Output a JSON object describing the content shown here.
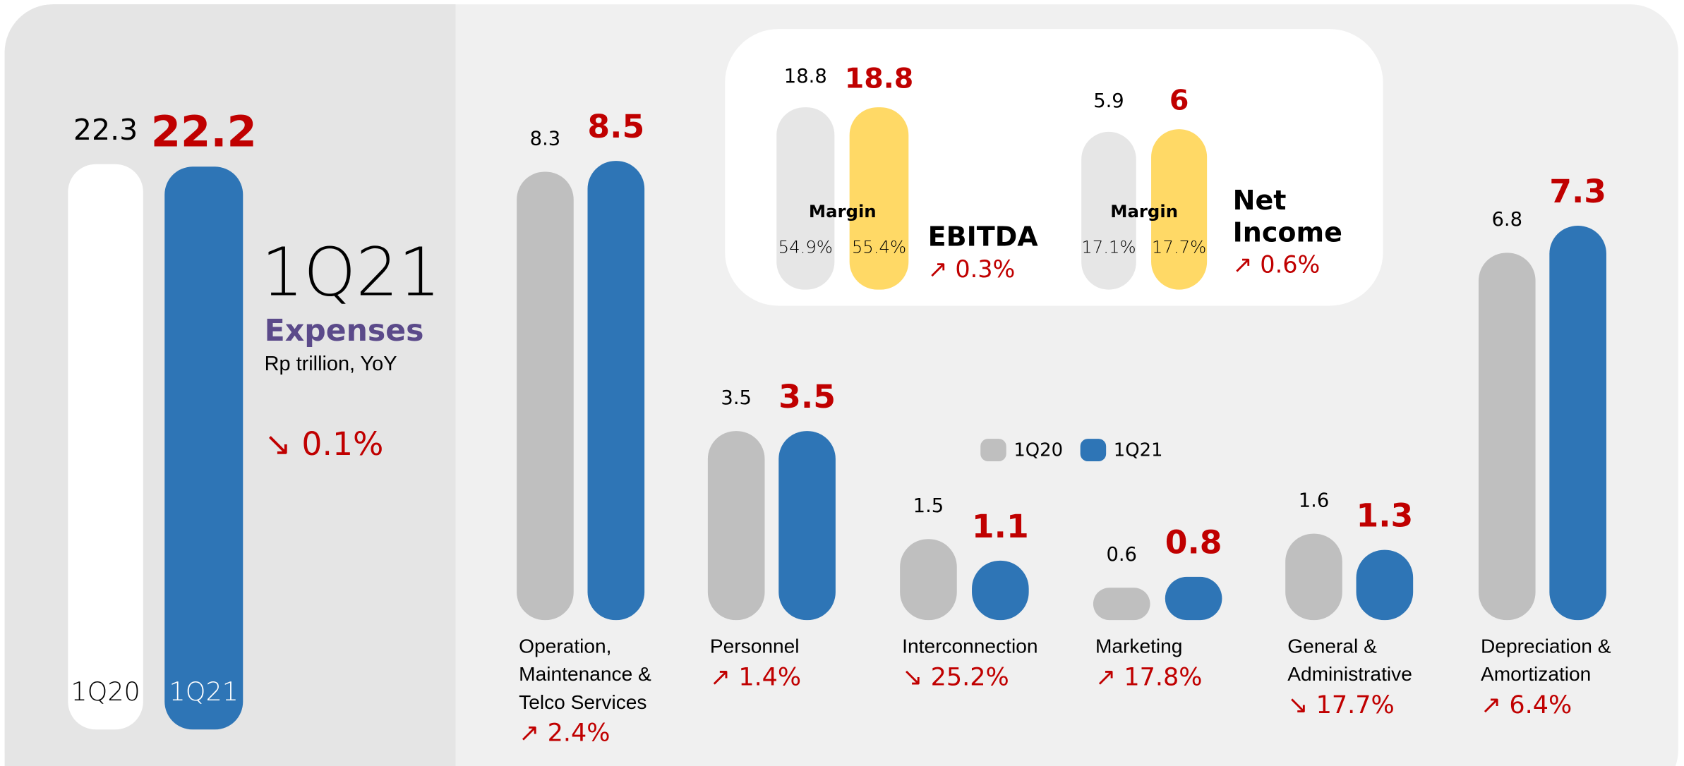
{
  "summary": {
    "title": "1Q21",
    "subtitle": "Expenses",
    "unit": "Rp trillion, YoY",
    "change": "↘ 0.1%",
    "series": [
      {
        "name": "1Q20",
        "color": "#ffffff",
        "value": 22.3
      },
      {
        "name": "1Q21",
        "color": "#2e75b6",
        "value": 22.2
      }
    ]
  },
  "highlights": [
    {
      "name": "EBITDA",
      "values": [
        18.8,
        18.8
      ],
      "margin_label": "Margin",
      "margins": [
        "54.9%",
        "55.4%"
      ],
      "change": "↗ 0.3%"
    },
    {
      "name": "Net Income",
      "values": [
        5.9,
        6.0
      ],
      "margin_label": "Margin",
      "margins": [
        "17.1%",
        "17.7%"
      ],
      "change": "↗ 0.6%"
    }
  ],
  "chart_data": {
    "type": "bar",
    "categories": [
      "Operation, Maintenance & Telco Services",
      "Personnel",
      "Interconnection",
      "Marketing",
      "General & Administrative",
      "Depreciation & Amortization"
    ],
    "changes": [
      "↗ 2.4%",
      "↗ 1.4%",
      "↘ 25.2%",
      "↗ 17.8%",
      "↘ 17.7%",
      "↗ 6.4%"
    ],
    "series": [
      {
        "name": "1Q20",
        "color": "#bfbfbf",
        "values": [
          8.3,
          3.5,
          1.5,
          0.6,
          1.6,
          6.8
        ]
      },
      {
        "name": "1Q21",
        "color": "#2e75b6",
        "values": [
          8.5,
          3.5,
          1.1,
          0.8,
          1.3,
          7.3
        ]
      }
    ]
  }
}
